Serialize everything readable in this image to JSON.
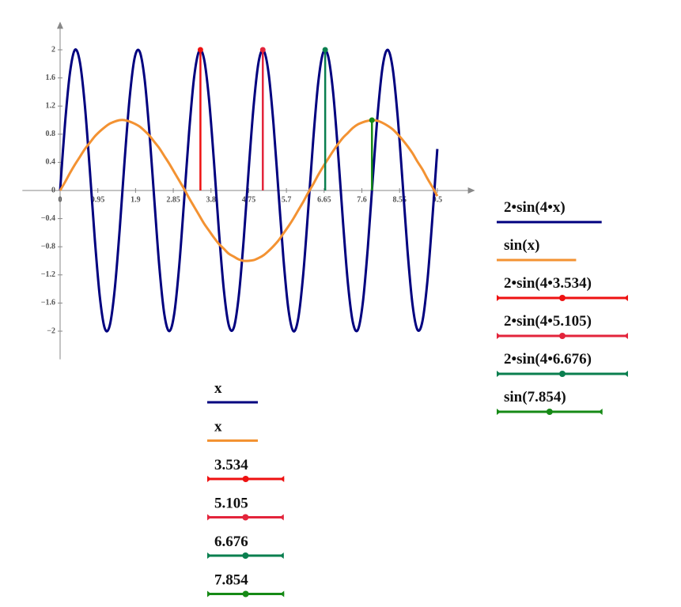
{
  "chart_data": {
    "type": "line",
    "xlim": [
      -0.95,
      10.45
    ],
    "ylim": [
      -2.4,
      2.4
    ],
    "xticks": [
      0,
      0.95,
      1.9,
      2.85,
      3.8,
      4.75,
      5.7,
      6.65,
      7.6,
      8.55,
      9.5
    ],
    "yticks": [
      {
        "value": -2,
        "label": "−2"
      },
      {
        "value": -1.6,
        "label": "−1.6"
      },
      {
        "value": -1.2,
        "label": "−1.2"
      },
      {
        "value": -0.8,
        "label": "−0.8"
      },
      {
        "value": -0.4,
        "label": "−0.4"
      },
      0,
      0.4,
      0.8,
      1.2,
      1.6,
      2
    ],
    "x": [
      0,
      0.125,
      0.25,
      0.375,
      0.5,
      0.625,
      0.75,
      0.875,
      1,
      1.125,
      1.25,
      1.375,
      1.5,
      1.625,
      1.75,
      1.875,
      2,
      2.125,
      2.25,
      2.375,
      2.5,
      2.625,
      2.75,
      2.875,
      3,
      3.125,
      3.25,
      3.375,
      3.5,
      3.625,
      3.75,
      3.875,
      4,
      4.125,
      4.25,
      4.375,
      4.5,
      4.625,
      4.75,
      4.875,
      5,
      5.125,
      5.25,
      5.375,
      5.5,
      5.625,
      5.75,
      5.875,
      6,
      6.125,
      6.25,
      6.375,
      6.5,
      6.625,
      6.75,
      6.875,
      7,
      7.125,
      7.25,
      7.375,
      7.5,
      7.625,
      7.75,
      7.875,
      8,
      8.125,
      8.25,
      8.375,
      8.5,
      8.625,
      8.75,
      8.875,
      9,
      9.125,
      9.25,
      9.375,
      9.5
    ],
    "series": [
      {
        "name": "2•sin(4•x)",
        "x_name": "x",
        "style": "line",
        "color": "#00007f",
        "values": [
          0,
          0.96,
          1.68,
          2,
          1.82,
          1.2,
          0.28,
          -0.7,
          -1.51,
          -1.96,
          -1.92,
          -1.41,
          -0.56,
          0.43,
          1.31,
          1.88,
          1.98,
          1.6,
          0.82,
          -0.15,
          -1.09,
          -1.76,
          -2,
          -1.75,
          -1.07,
          -0.13,
          0.84,
          1.61,
          1.98,
          1.87,
          1.3,
          0.41,
          -0.58,
          -1.42,
          -1.92,
          -1.95,
          -1.5,
          -0.69,
          0.3,
          1.21,
          1.83,
          1.99,
          1.67,
          0.94,
          -0.02,
          -0.97,
          -1.69,
          -2,
          -1.81,
          -1.18,
          -0.26,
          0.72,
          1.53,
          1.96,
          1.91,
          1.4,
          0.54,
          -0.45,
          -1.33,
          -1.88,
          -1.98,
          -1.59,
          -0.81,
          0.17,
          1.1,
          1.77,
          2,
          1.74,
          1.06,
          0.12,
          -0.86,
          -1.62,
          -1.98,
          -1.86,
          -1.29,
          -0.4,
          0.59
        ]
      },
      {
        "name": "sin(x)",
        "x_name": "x",
        "style": "line",
        "color": "#f39232",
        "values": [
          0,
          0.12,
          0.25,
          0.37,
          0.48,
          0.59,
          0.68,
          0.77,
          0.84,
          0.9,
          0.95,
          0.98,
          1,
          1,
          0.98,
          0.95,
          0.91,
          0.85,
          0.78,
          0.69,
          0.6,
          0.49,
          0.38,
          0.26,
          0.14,
          0.02,
          -0.11,
          -0.23,
          -0.35,
          -0.47,
          -0.57,
          -0.67,
          -0.76,
          -0.83,
          -0.9,
          -0.94,
          -0.98,
          -1,
          -1,
          -0.99,
          -0.96,
          -0.92,
          -0.86,
          -0.79,
          -0.71,
          -0.61,
          -0.51,
          -0.4,
          -0.28,
          -0.16,
          -0.03,
          0.09,
          0.22,
          0.34,
          0.45,
          0.56,
          0.66,
          0.75,
          0.82,
          0.89,
          0.94,
          0.97,
          0.99,
          1,
          0.99,
          0.96,
          0.92,
          0.87,
          0.8,
          0.72,
          0.63,
          0.53,
          0.41,
          0.3,
          0.17,
          0.05,
          -0.08
        ]
      },
      {
        "name": "2•sin(4•3.534)",
        "x_name": "3.534",
        "style": "stem",
        "color": "#ee1111",
        "x": [
          3.534
        ],
        "values": [
          2
        ]
      },
      {
        "name": "2•sin(4•5.105)",
        "x_name": "5.105",
        "style": "stem",
        "color": "#e3243b",
        "x": [
          5.105
        ],
        "values": [
          2
        ]
      },
      {
        "name": "2•sin(4•6.676)",
        "x_name": "6.676",
        "style": "stem",
        "color": "#0a7f4f",
        "x": [
          6.676
        ],
        "values": [
          2
        ]
      },
      {
        "name": "sin(7.854)",
        "x_name": "7.854",
        "style": "stem",
        "color": "#168a16",
        "x": [
          7.854
        ],
        "values": [
          1
        ]
      }
    ]
  }
}
